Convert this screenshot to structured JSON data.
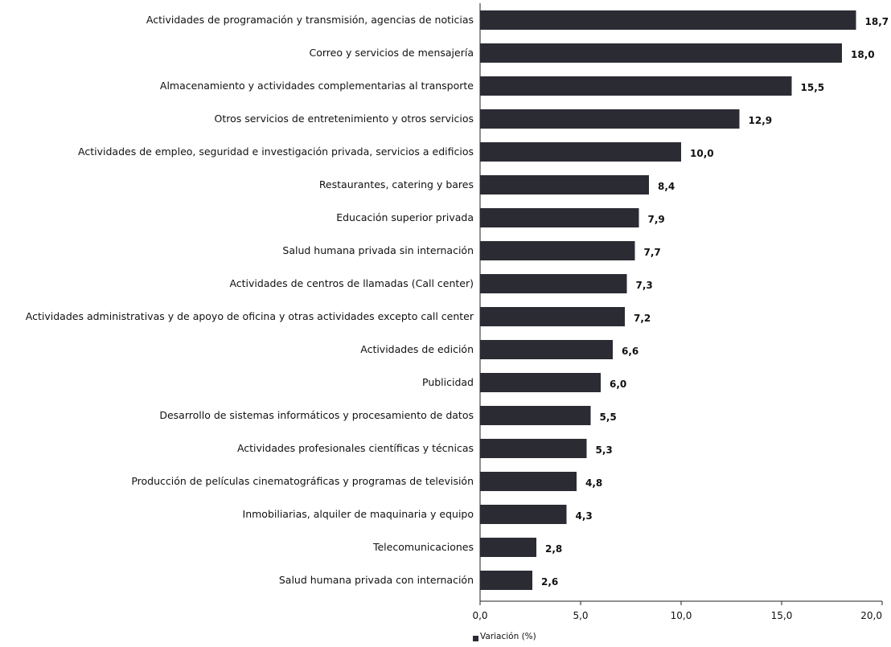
{
  "chart_data": {
    "type": "bar",
    "orientation": "horizontal",
    "categories": [
      "Actividades de programación y transmisión,  agencias de noticias",
      "Correo y servicios de mensajería",
      "Almacenamiento y actividades complementarias al transporte",
      "Otros servicios de entretenimiento y otros servicios",
      "Actividades de empleo, seguridad e investigación privada, servicios a edificios",
      "Restaurantes, catering y bares",
      "Educación superior privada",
      "Salud humana privada sin internación",
      "Actividades de centros de llamadas (Call center)",
      "Actividades administrativas y de apoyo de oficina y otras actividades excepto call center",
      "Actividades de edición",
      "Publicidad",
      "Desarrollo de sistemas informáticos y procesamiento de datos",
      "Actividades profesionales científicas y técnicas",
      "Producción de películas cinematográficas y programas de televisión",
      "Inmobiliarias, alquiler de maquinaria y equipo",
      "Telecomunicaciones",
      "Salud humana privada con internación"
    ],
    "series": [
      {
        "name": "Variación (%)",
        "values": [
          18.7,
          18.0,
          15.5,
          12.9,
          10.0,
          8.4,
          7.9,
          7.7,
          7.3,
          7.2,
          6.6,
          6.0,
          5.5,
          5.3,
          4.8,
          4.3,
          2.8,
          2.6
        ],
        "color": "#2b2b33"
      }
    ],
    "value_labels": [
      "18,7",
      "18,0",
      "15,5",
      "12,9",
      "10,0",
      "8,4",
      "7,9",
      "7,7",
      "7,3",
      "7,2",
      "6,6",
      "6,0",
      "5,5",
      "5,3",
      "4,8",
      "4,3",
      "2,8",
      "2,6"
    ],
    "xlim": [
      0,
      20
    ],
    "x_ticks": [
      0,
      5,
      10,
      15,
      20
    ],
    "x_tick_labels": [
      "0,0",
      "5,0",
      "10,0",
      "15,0",
      "20,0"
    ],
    "grid": false,
    "legend": {
      "placement": "bottom-center",
      "label": "Variación (%)"
    },
    "title": "",
    "xlabel": "",
    "ylabel": ""
  }
}
